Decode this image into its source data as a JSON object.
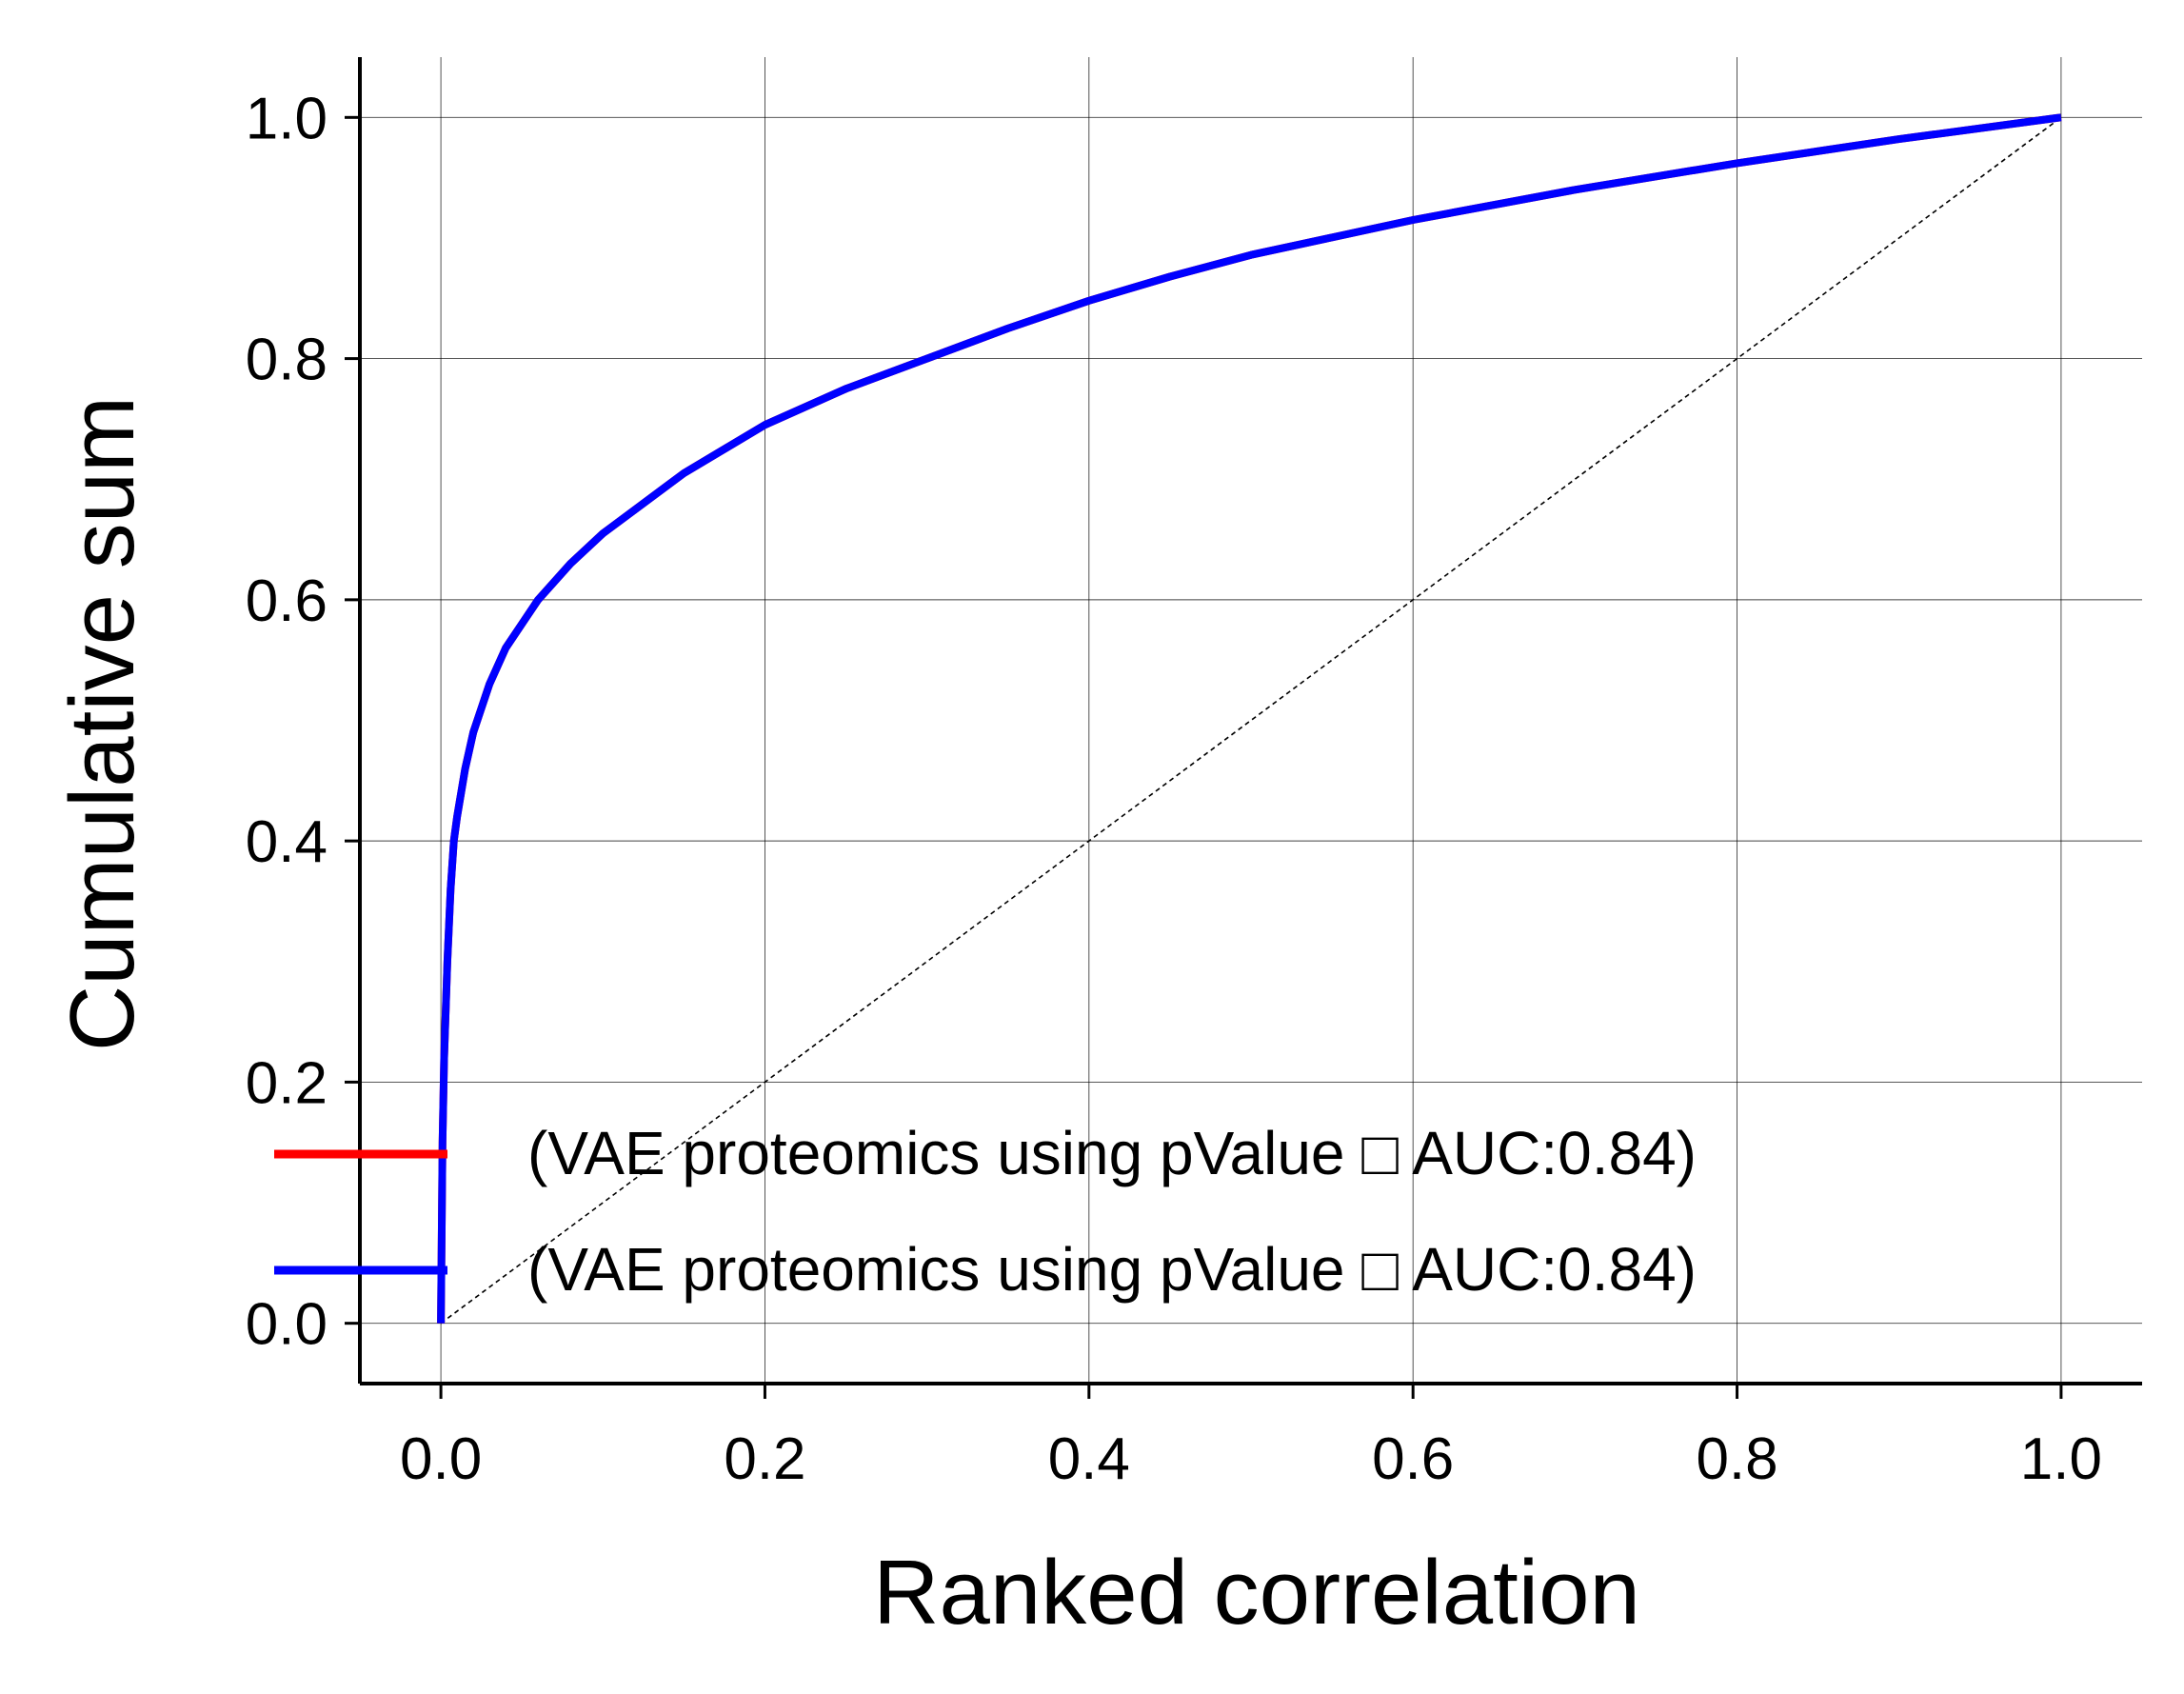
{
  "chart_data": {
    "type": "line",
    "title": "",
    "xlabel": "Ranked correlation",
    "ylabel": "Cumulative sum",
    "xlim": [
      -0.05,
      1.05
    ],
    "ylim": [
      -0.05,
      1.05
    ],
    "xticks": [
      "0.0",
      "0.2",
      "0.4",
      "0.6",
      "0.8",
      "1.0"
    ],
    "yticks": [
      "0.0",
      "0.2",
      "0.4",
      "0.6",
      "0.8",
      "1.0"
    ],
    "grid": true,
    "legend_position": "lower-right",
    "reference_line": {
      "style": "dashed",
      "color": "#000000",
      "x": [
        0,
        1
      ],
      "y": [
        0,
        1
      ]
    },
    "series": [
      {
        "name": "(VAE proteomics using pValue □ AUC:0.84)",
        "color": "#ff0000",
        "x": [
          0,
          0.001,
          0.002,
          0.004,
          0.006,
          0.008,
          0.01,
          0.015,
          0.02,
          0.03,
          0.04,
          0.05,
          0.06,
          0.08,
          0.1,
          0.12,
          0.15,
          0.2,
          0.25,
          0.3,
          0.35,
          0.4,
          0.45,
          0.5,
          0.6,
          0.7,
          0.8,
          0.9,
          1.0
        ],
        "y": [
          0,
          0.15,
          0.22,
          0.3,
          0.36,
          0.4,
          0.42,
          0.46,
          0.49,
          0.53,
          0.56,
          0.58,
          0.6,
          0.63,
          0.655,
          0.675,
          0.705,
          0.745,
          0.775,
          0.8,
          0.825,
          0.848,
          0.868,
          0.886,
          0.915,
          0.94,
          0.962,
          0.982,
          1.0
        ]
      },
      {
        "name": "(VAE proteomics using pValue □ AUC:0.84)",
        "color": "#0000ff",
        "x": [
          0,
          0.001,
          0.002,
          0.004,
          0.006,
          0.008,
          0.01,
          0.015,
          0.02,
          0.03,
          0.04,
          0.05,
          0.06,
          0.08,
          0.1,
          0.12,
          0.15,
          0.2,
          0.25,
          0.3,
          0.35,
          0.4,
          0.45,
          0.5,
          0.6,
          0.7,
          0.8,
          0.9,
          1.0
        ],
        "y": [
          0,
          0.15,
          0.22,
          0.3,
          0.36,
          0.4,
          0.42,
          0.46,
          0.49,
          0.53,
          0.56,
          0.58,
          0.6,
          0.63,
          0.655,
          0.675,
          0.705,
          0.745,
          0.775,
          0.8,
          0.825,
          0.848,
          0.868,
          0.886,
          0.915,
          0.94,
          0.962,
          0.982,
          1.0
        ]
      }
    ]
  }
}
